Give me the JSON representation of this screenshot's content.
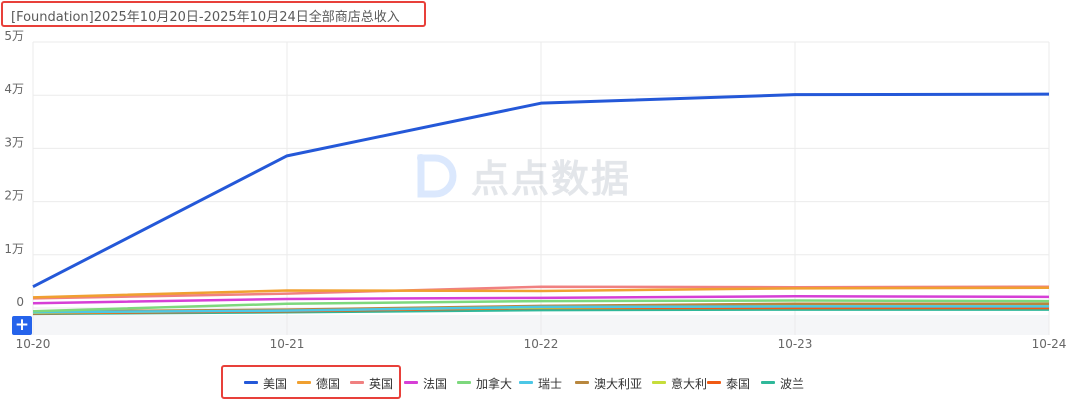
{
  "title": "[Foundation]2025年10月20日-2025年10月24日全部商店总收入",
  "watermark": "点点数据",
  "zoom_button": "+",
  "chart_data": {
    "type": "line",
    "title": "[Foundation]2025年10月20日-2025年10月24日全部商店总收入",
    "x": [
      "10-20",
      "10-21",
      "10-22",
      "10-23",
      "10-24"
    ],
    "ylim": [
      0,
      50000
    ],
    "yticks": [
      0,
      10000,
      20000,
      30000,
      40000,
      50000
    ],
    "ytick_labels": [
      "0",
      "1万",
      "2万",
      "3万",
      "4万",
      "5万"
    ],
    "grid": true,
    "legend_position": "bottom",
    "series": [
      {
        "name": "美国",
        "color": "#2458d8",
        "values": [
          4000,
          28600,
          38500,
          40100,
          40200
        ]
      },
      {
        "name": "德国",
        "color": "#f0a030",
        "values": [
          2000,
          3300,
          3200,
          3700,
          3800
        ]
      },
      {
        "name": "英国",
        "color": "#f08080",
        "values": [
          1800,
          2700,
          4000,
          3900,
          4000
        ]
      },
      {
        "name": "法国",
        "color": "#d63fd6",
        "values": [
          900,
          1700,
          1900,
          2200,
          2100
        ]
      },
      {
        "name": "加拿大",
        "color": "#7dd87d",
        "values": [
          -600,
          800,
          1300,
          1400,
          1300
        ]
      },
      {
        "name": "瑞士",
        "color": "#4cc7e6",
        "values": [
          -800,
          -500,
          200,
          300,
          300
        ]
      },
      {
        "name": "澳大利亚",
        "color": "#b8873e",
        "values": [
          -700,
          -300,
          400,
          800,
          800
        ]
      },
      {
        "name": "意大利",
        "color": "#c6dd3a",
        "values": [
          -900,
          -400,
          100,
          400,
          500
        ]
      },
      {
        "name": "泰国",
        "color": "#f05a14",
        "values": [
          -1000,
          -600,
          0,
          0,
          0
        ]
      },
      {
        "name": "波兰",
        "color": "#2fb89a",
        "values": [
          -1100,
          -800,
          -400,
          -300,
          -300
        ]
      }
    ]
  }
}
